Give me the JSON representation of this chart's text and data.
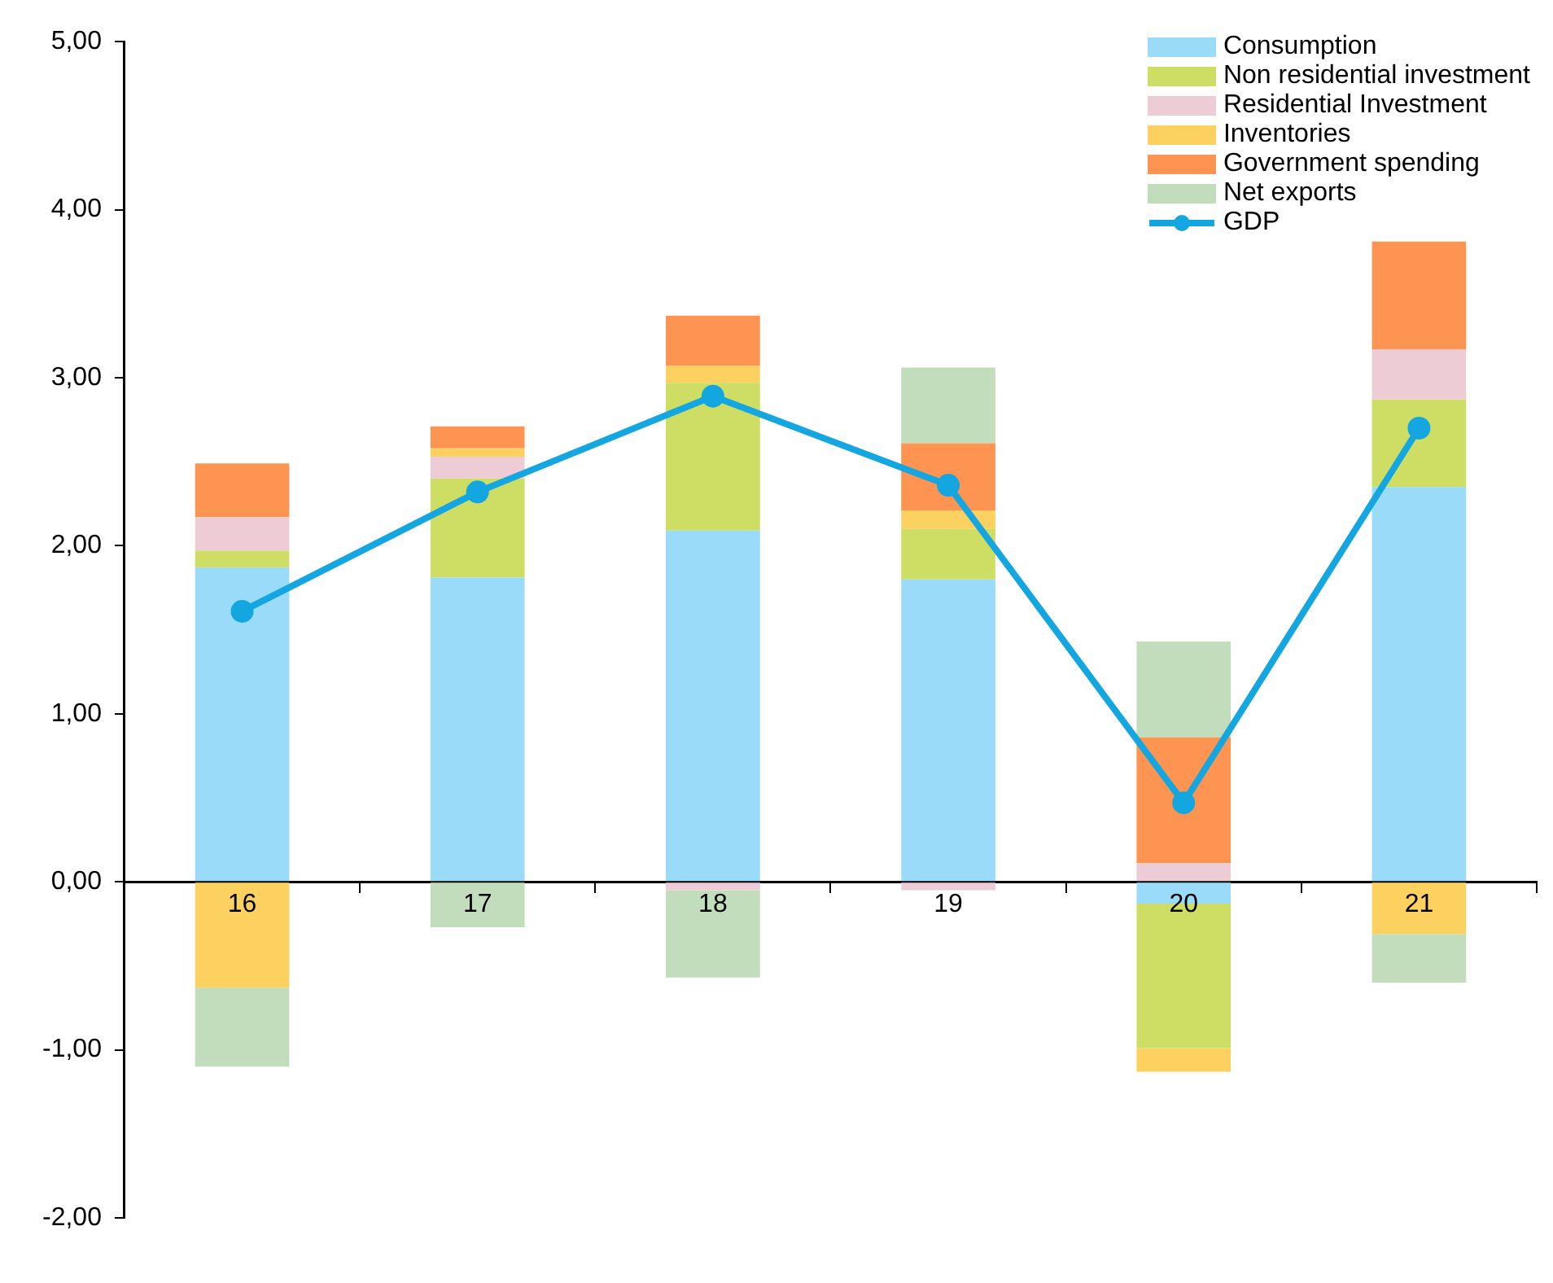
{
  "chart_data": {
    "type": "bar",
    "stacked": true,
    "categories": [
      "16",
      "17",
      "18",
      "19",
      "20",
      "21"
    ],
    "ylim": [
      -2,
      5
    ],
    "yticks": [
      {
        "value": -2,
        "label": "-2,00"
      },
      {
        "value": -1,
        "label": "-1,00"
      },
      {
        "value": 0,
        "label": "0,00"
      },
      {
        "value": 1,
        "label": "1,00"
      },
      {
        "value": 2,
        "label": "2,00"
      },
      {
        "value": 3,
        "label": "3,00"
      },
      {
        "value": 4,
        "label": "4,00"
      },
      {
        "value": 5,
        "label": "5,00"
      }
    ],
    "legend": "top right",
    "grid": false,
    "series": [
      {
        "name": "Consumption",
        "color": "#99dbf8",
        "values": [
          1.87,
          1.81,
          2.09,
          1.8,
          -0.13,
          2.35
        ]
      },
      {
        "name": "Non residential investment",
        "color": "#cedd63",
        "values": [
          0.1,
          0.59,
          0.88,
          0.3,
          -0.86,
          0.52
        ]
      },
      {
        "name": "Residential Investment",
        "color": "#eeccd6",
        "values": [
          0.2,
          0.13,
          -0.05,
          -0.05,
          0.11,
          0.3
        ]
      },
      {
        "name": "Inventories",
        "color": "#fdd160",
        "values": [
          -0.63,
          0.05,
          0.1,
          0.11,
          -0.14,
          -0.31
        ]
      },
      {
        "name": "Government spending",
        "color": "#fe9451",
        "values": [
          0.32,
          0.13,
          0.3,
          0.4,
          0.75,
          0.64
        ]
      },
      {
        "name": "Net exports",
        "color": "#c2ddbc",
        "values": [
          -0.47,
          -0.27,
          -0.52,
          0.45,
          0.57,
          -0.29
        ]
      },
      {
        "name": "GDP",
        "type": "line",
        "color": "#14a6e0",
        "marker": "circle",
        "line_style": "solid",
        "values": [
          1.61,
          2.32,
          2.89,
          2.36,
          0.47,
          2.7
        ]
      }
    ]
  }
}
